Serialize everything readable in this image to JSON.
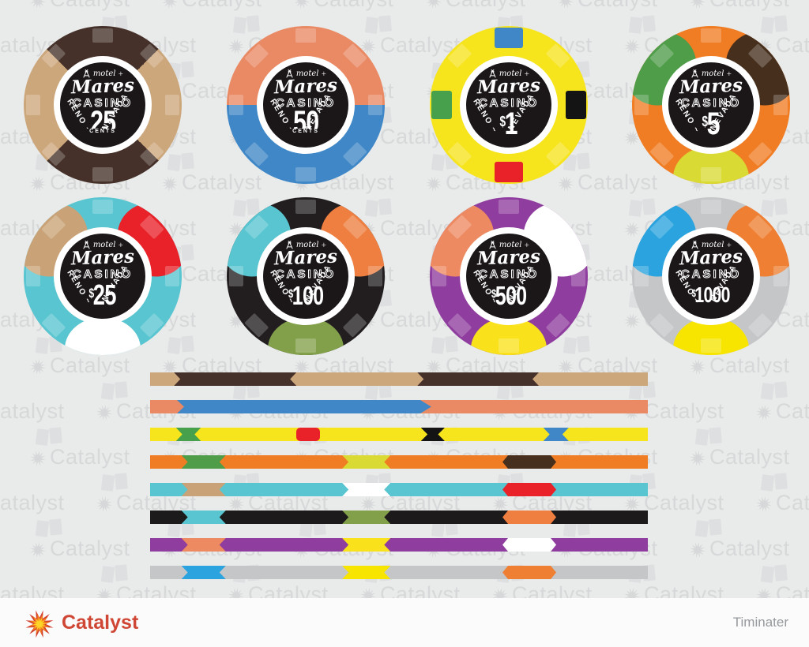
{
  "page": {
    "background_color": "#e9eaea",
    "watermark": {
      "text": "Catalyst",
      "color": "#d7d8d9"
    }
  },
  "inlay": {
    "motel": "motel",
    "name": "Mares",
    "casino": "CASINO",
    "arc_left": "RENO ~",
    "arc_right": "NEVADA",
    "disc_color": "#1b1718",
    "ring_color": "#ffffff"
  },
  "chips": [
    {
      "denomination": "25",
      "unit": "CENTS",
      "style": "quarters",
      "colors": [
        "#46312a",
        "#cda77c"
      ]
    },
    {
      "denomination": "50",
      "unit": "CENTS",
      "style": "halves",
      "colors": [
        "#e98a64",
        "#3f87c7"
      ]
    },
    {
      "denomination": "$1",
      "style": "edge-inserts",
      "base": "#f6e41d",
      "inserts": {
        "top": "#3f87c7",
        "right": "#141414",
        "bottom": "#e92128",
        "left": "#47a04b"
      }
    },
    {
      "denomination": "$5",
      "style": "spots",
      "base": "#f07d24",
      "spots": {
        "upper_left": "#4f9d49",
        "upper_right": "#46301d",
        "bottom": "#d9da33"
      }
    },
    {
      "denomination": "$25",
      "style": "spots",
      "base": "#58c5d0",
      "spots": {
        "upper_left": "#c9a377",
        "upper_right": "#e92128",
        "bottom": "#ffffff"
      }
    },
    {
      "denomination": "$100",
      "style": "spots",
      "base": "#221e1f",
      "spots": {
        "upper_left": "#58c5d0",
        "upper_right": "#ef7f40",
        "bottom": "#82a04a"
      }
    },
    {
      "denomination": "$500",
      "style": "spots",
      "base": "#8f3d9e",
      "spots": {
        "upper_left": "#ee8a61",
        "upper_right": "#ffffff",
        "bottom": "#f9e21b"
      }
    },
    {
      "denomination": "$1000",
      "style": "spots",
      "base": "#c5c6c8",
      "spots": {
        "upper_left": "#2ba3de",
        "upper_right": "#ef7f33",
        "bottom": "#f7e500"
      }
    }
  ],
  "strips": [
    {
      "base": "#cda77c",
      "segments": [
        {
          "color": "#46312a",
          "left_pct": 4.8,
          "width_pct": 24.6,
          "shape": "notch"
        },
        {
          "color": "#46312a",
          "left_pct": 53.7,
          "width_pct": 24.4,
          "shape": "notch"
        }
      ]
    },
    {
      "base": "#e98a64",
      "segments": [
        {
          "color": "#3f87c7",
          "left_pct": 5.4,
          "width_pct": 51.1,
          "shape": "arrow-right"
        }
      ]
    },
    {
      "base": "#f6e41d",
      "segments": [
        {
          "color": "#47a04b",
          "left_pct": 5.2,
          "width_pct": 5.0,
          "shape": "notch"
        },
        {
          "color": "#e92128",
          "left_pct": 29.4,
          "width_pct": 4.8,
          "shape": "round"
        },
        {
          "color": "#141414",
          "left_pct": 54.4,
          "width_pct": 4.8,
          "shape": "bowtie"
        },
        {
          "color": "#3f87c7",
          "left_pct": 79.0,
          "width_pct": 5.1,
          "shape": "notch"
        }
      ]
    },
    {
      "base": "#f07d24",
      "segments": [
        {
          "color": "#4f9d49",
          "left_pct": 6.3,
          "width_pct": 8.9,
          "shape": "notch"
        },
        {
          "color": "#d9da33",
          "left_pct": 38.6,
          "width_pct": 9.7,
          "shape": "notch"
        },
        {
          "color": "#46301d",
          "left_pct": 70.8,
          "width_pct": 10.8,
          "shape": "point"
        }
      ]
    },
    {
      "base": "#58c5d0",
      "segments": [
        {
          "color": "#c9a377",
          "left_pct": 6.3,
          "width_pct": 8.9,
          "shape": "notch"
        },
        {
          "color": "#ffffff",
          "left_pct": 38.6,
          "width_pct": 9.7,
          "shape": "notch"
        },
        {
          "color": "#e92128",
          "left_pct": 70.8,
          "width_pct": 10.8,
          "shape": "point"
        }
      ]
    },
    {
      "base": "#1d1a1b",
      "segments": [
        {
          "color": "#58c5d0",
          "left_pct": 6.3,
          "width_pct": 8.9,
          "shape": "notch"
        },
        {
          "color": "#82a04a",
          "left_pct": 38.6,
          "width_pct": 9.7,
          "shape": "notch"
        },
        {
          "color": "#ef7f40",
          "left_pct": 70.8,
          "width_pct": 10.8,
          "shape": "point"
        }
      ]
    },
    {
      "base": "#8f3d9e",
      "segments": [
        {
          "color": "#ee8a61",
          "left_pct": 6.3,
          "width_pct": 8.9,
          "shape": "notch"
        },
        {
          "color": "#f9e21b",
          "left_pct": 38.6,
          "width_pct": 9.7,
          "shape": "notch"
        },
        {
          "color": "#ffffff",
          "left_pct": 70.8,
          "width_pct": 10.8,
          "shape": "point"
        }
      ]
    },
    {
      "base": "#c5c6c8",
      "segments": [
        {
          "color": "#2ba3de",
          "left_pct": 6.3,
          "width_pct": 8.9,
          "shape": "notch"
        },
        {
          "color": "#f7e500",
          "left_pct": 38.6,
          "width_pct": 9.7,
          "shape": "notch"
        },
        {
          "color": "#ef7f33",
          "left_pct": 70.8,
          "width_pct": 10.8,
          "shape": "point"
        }
      ]
    }
  ],
  "layout_labels": {
    "chip_rows": 2,
    "chips_per_row": 4
  },
  "footer": {
    "brand": "Catalyst",
    "author": "Timinater",
    "brand_color": "#cf4734",
    "author_color": "#95989c",
    "background": "#fbfbfb"
  }
}
